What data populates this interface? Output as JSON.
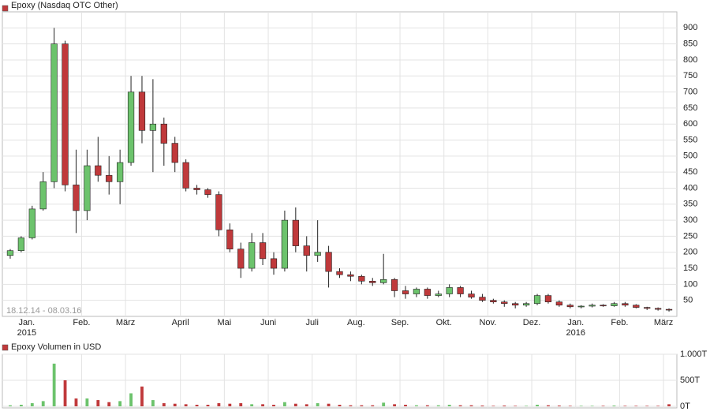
{
  "chart_data": [
    {
      "type": "candlestick",
      "title": "Epoxy (Nasdaq OTC Other)",
      "range_label": "18.12.14 - 08.03.16",
      "up_color": "#6cc36c",
      "down_color": "#c0393b",
      "ylim": [
        0,
        950
      ],
      "yticks": [
        50,
        100,
        150,
        200,
        250,
        300,
        350,
        400,
        450,
        500,
        550,
        600,
        650,
        700,
        750,
        800,
        850,
        900
      ],
      "months": [
        {
          "label": null,
          "candles": [
            [
              190,
              210,
              180,
              205
            ],
            [
              205,
              250,
              200,
              245
            ]
          ]
        },
        {
          "label": "Jan.",
          "year": "2015",
          "candles": [
            [
              245,
              345,
              240,
              335
            ],
            [
              335,
              450,
              330,
              420
            ],
            [
              420,
              900,
              400,
              850
            ],
            [
              850,
              860,
              390,
              410
            ],
            [
              410,
              520,
              260,
              330
            ]
          ]
        },
        {
          "label": "Feb.",
          "candles": [
            [
              330,
              520,
              300,
              470
            ],
            [
              470,
              560,
              420,
              440
            ],
            [
              440,
              500,
              380,
              420
            ],
            [
              420,
              520,
              350,
              480
            ]
          ]
        },
        {
          "label": "März",
          "candles": [
            [
              480,
              750,
              470,
              700
            ],
            [
              700,
              750,
              540,
              580
            ],
            [
              580,
              740,
              450,
              600
            ],
            [
              600,
              620,
              470,
              540
            ],
            [
              540,
              560,
              450,
              480
            ]
          ]
        },
        {
          "label": "April",
          "candles": [
            [
              480,
              490,
              390,
              400
            ],
            [
              400,
              410,
              380,
              395
            ],
            [
              395,
              400,
              370,
              380
            ],
            [
              380,
              390,
              250,
              270
            ]
          ]
        },
        {
          "label": "Mai",
          "candles": [
            [
              270,
              290,
              200,
              210
            ],
            [
              210,
              230,
              120,
              150
            ],
            [
              150,
              260,
              140,
              230
            ],
            [
              230,
              260,
              160,
              180
            ]
          ]
        },
        {
          "label": "Juni",
          "candles": [
            [
              180,
              200,
              130,
              150
            ],
            [
              150,
              330,
              140,
              300
            ],
            [
              300,
              340,
              200,
              220
            ],
            [
              220,
              250,
              140,
              190
            ]
          ]
        },
        {
          "label": "Juli",
          "candles": [
            [
              190,
              300,
              170,
              200
            ],
            [
              200,
              220,
              90,
              140
            ],
            [
              140,
              150,
              120,
              130
            ],
            [
              130,
              140,
              110,
              125
            ]
          ]
        },
        {
          "label": "Aug.",
          "candles": [
            [
              125,
              130,
              100,
              110
            ],
            [
              110,
              120,
              95,
              105
            ],
            [
              105,
              195,
              100,
              115
            ],
            [
              115,
              120,
              60,
              80
            ]
          ]
        },
        {
          "label": "Sep.",
          "candles": [
            [
              80,
              95,
              55,
              70
            ],
            [
              70,
              90,
              60,
              85
            ],
            [
              85,
              90,
              55,
              65
            ],
            [
              65,
              80,
              60,
              70
            ]
          ]
        },
        {
          "label": "Okt.",
          "candles": [
            [
              70,
              100,
              60,
              90
            ],
            [
              90,
              95,
              60,
              70
            ],
            [
              70,
              80,
              55,
              60
            ],
            [
              60,
              70,
              45,
              50
            ]
          ]
        },
        {
          "label": "Nov.",
          "candles": [
            [
              50,
              55,
              40,
              45
            ],
            [
              45,
              50,
              30,
              40
            ],
            [
              40,
              45,
              25,
              35
            ],
            [
              35,
              45,
              30,
              40
            ]
          ]
        },
        {
          "label": "Dez.",
          "candles": [
            [
              40,
              70,
              35,
              65
            ],
            [
              65,
              70,
              40,
              45
            ],
            [
              45,
              50,
              30,
              35
            ],
            [
              35,
              40,
              25,
              30
            ]
          ]
        },
        {
          "label": "Jan.",
          "year": "2016",
          "candles": [
            [
              30,
              35,
              25,
              32
            ],
            [
              32,
              40,
              28,
              35
            ],
            [
              35,
              38,
              30,
              33
            ],
            [
              33,
              45,
              30,
              40
            ]
          ]
        },
        {
          "label": "Feb.",
          "candles": [
            [
              40,
              45,
              30,
              35
            ],
            [
              35,
              38,
              25,
              28
            ],
            [
              28,
              30,
              20,
              25
            ],
            [
              25,
              28,
              18,
              22
            ]
          ]
        },
        {
          "label": "März",
          "candles": [
            [
              22,
              25,
              15,
              20
            ]
          ]
        }
      ]
    },
    {
      "type": "bar",
      "title": "Epoxy Volumen in USD",
      "ylim": [
        0,
        1000
      ],
      "yticks": [
        {
          "value": 0,
          "label": "0T"
        },
        {
          "value": 500,
          "label": "500T"
        },
        {
          "value": 1000,
          "label": "1.000T"
        }
      ],
      "values": [
        20,
        30,
        60,
        100,
        820,
        500,
        150,
        150,
        120,
        80,
        100,
        250,
        380,
        120,
        60,
        50,
        40,
        30,
        30,
        60,
        50,
        60,
        40,
        40,
        30,
        80,
        50,
        40,
        60,
        50,
        30,
        20,
        20,
        20,
        70,
        40,
        30,
        20,
        20,
        20,
        30,
        20,
        20,
        15,
        10,
        15,
        10,
        10,
        30,
        20,
        15,
        10,
        10,
        10,
        10,
        15,
        10,
        10,
        10,
        10,
        40
      ]
    }
  ]
}
